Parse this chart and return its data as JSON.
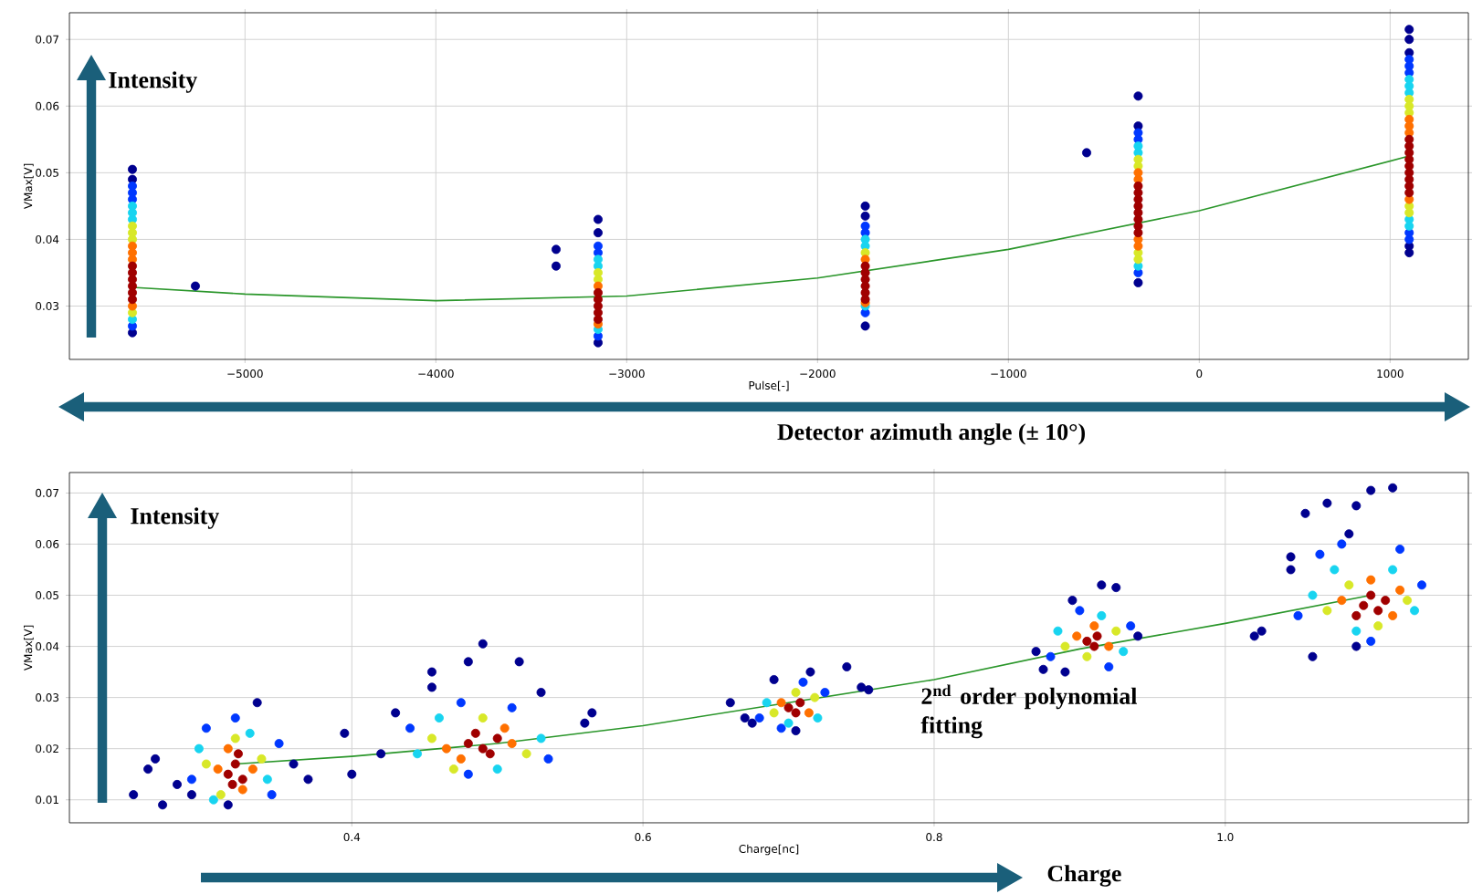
{
  "chart_data": [
    {
      "type": "scatter",
      "xlabel": "Pulse[-]",
      "ylabel": "VMax[V]",
      "xlim": [
        -5920,
        1410
      ],
      "ylim": [
        0.022,
        0.074
      ],
      "xticks": [
        {
          "value": -5000,
          "label": "−5000"
        },
        {
          "value": -4000,
          "label": "−4000"
        },
        {
          "value": -3000,
          "label": "−3000"
        },
        {
          "value": -2000,
          "label": "−2000"
        },
        {
          "value": -1000,
          "label": "−1000"
        },
        0,
        1000
      ],
      "yticks": [
        0.03,
        0.04,
        0.05,
        0.06,
        0.07
      ],
      "grid": true,
      "annotations": [
        "Intensity",
        "Detector azimuth angle (± 10°)"
      ],
      "series": [
        {
          "color": "#00008f",
          "x": [
            -5590,
            -5590,
            -5590,
            -3150,
            -3150,
            -3150,
            -1750,
            -1750,
            -1750,
            -320,
            -320,
            -320,
            1100,
            1100,
            1100,
            1100,
            1100,
            -5260,
            -3370,
            -3370,
            -590
          ],
          "values": [
            0.026,
            0.0505,
            0.049,
            0.0245,
            0.041,
            0.043,
            0.027,
            0.0435,
            0.045,
            0.0335,
            0.0615,
            0.057,
            0.038,
            0.039,
            0.068,
            0.07,
            0.0715,
            0.033,
            0.0385,
            0.036,
            0.053
          ]
        },
        {
          "color": "#0038ff",
          "x": [
            -5590,
            -5590,
            -5590,
            -5590,
            -3150,
            -3150,
            -3150,
            -1750,
            -1750,
            -1750,
            -320,
            -320,
            -320,
            1100,
            1100,
            1100,
            1100,
            1100
          ],
          "values": [
            0.027,
            0.046,
            0.048,
            0.047,
            0.0255,
            0.038,
            0.039,
            0.029,
            0.041,
            0.042,
            0.035,
            0.055,
            0.056,
            0.04,
            0.041,
            0.065,
            0.066,
            0.067
          ]
        },
        {
          "color": "#18d4f0",
          "x": [
            -5590,
            -5590,
            -5590,
            -5590,
            -3150,
            -3150,
            -3150,
            -1750,
            -1750,
            -1750,
            -320,
            -320,
            -320,
            1100,
            1100,
            1100,
            1100,
            1100
          ],
          "values": [
            0.028,
            0.043,
            0.044,
            0.045,
            0.0265,
            0.036,
            0.037,
            0.03,
            0.039,
            0.04,
            0.036,
            0.053,
            0.054,
            0.042,
            0.043,
            0.062,
            0.063,
            0.064
          ]
        },
        {
          "color": "#d8e828",
          "x": [
            -5590,
            -5590,
            -5590,
            -5590,
            -3150,
            -3150,
            -1750,
            -320,
            -320,
            -320,
            -320,
            1100,
            1100,
            1100,
            1100,
            1100
          ],
          "values": [
            0.029,
            0.04,
            0.041,
            0.042,
            0.034,
            0.035,
            0.038,
            0.037,
            0.038,
            0.051,
            0.052,
            0.044,
            0.045,
            0.059,
            0.06,
            0.061
          ]
        },
        {
          "color": "#ff7000",
          "x": [
            -5590,
            -5590,
            -5590,
            -5590,
            -3150,
            -3150,
            -1750,
            -1750,
            -320,
            -320,
            -320,
            -320,
            1100,
            1100,
            1100,
            1100
          ],
          "values": [
            0.03,
            0.037,
            0.038,
            0.039,
            0.0273,
            0.033,
            0.037,
            0.0305,
            0.039,
            0.04,
            0.049,
            0.05,
            0.046,
            0.056,
            0.057,
            0.058
          ]
        },
        {
          "color": "#a00000",
          "x": [
            -5590,
            -5590,
            -5590,
            -5590,
            -5590,
            -5590,
            -3150,
            -3150,
            -3150,
            -3150,
            -3150,
            -1750,
            -1750,
            -1750,
            -1750,
            -1750,
            -1750,
            -320,
            -320,
            -320,
            -320,
            -320,
            -320,
            -320,
            -320,
            1100,
            1100,
            1100,
            1100,
            1100,
            1100,
            1100,
            1100,
            1100
          ],
          "values": [
            0.031,
            0.032,
            0.033,
            0.034,
            0.035,
            0.036,
            0.028,
            0.029,
            0.03,
            0.031,
            0.032,
            0.031,
            0.032,
            0.033,
            0.034,
            0.035,
            0.036,
            0.041,
            0.042,
            0.043,
            0.044,
            0.045,
            0.046,
            0.047,
            0.048,
            0.047,
            0.048,
            0.049,
            0.05,
            0.051,
            0.052,
            0.053,
            0.054,
            0.055
          ]
        },
        {
          "type": "line",
          "color": "#2a962a",
          "x": [
            -5590,
            -5000,
            -4000,
            -3000,
            -2000,
            -1000,
            0,
            1100
          ],
          "values": [
            0.0328,
            0.0318,
            0.0308,
            0.0315,
            0.0342,
            0.0385,
            0.0443,
            0.0525
          ]
        }
      ]
    },
    {
      "type": "scatter",
      "xlabel": "Charge[nc]",
      "ylabel": "VMax[V]",
      "xlim": [
        0.206,
        1.167
      ],
      "ylim": [
        0.0055,
        0.074
      ],
      "xticks": [
        0.4,
        0.6,
        0.8,
        {
          "value": 1.0,
          "label": "1.0"
        }
      ],
      "yticks": [
        0.01,
        0.02,
        0.03,
        0.04,
        0.05,
        0.06,
        0.07
      ],
      "grid": true,
      "annotations": [
        "Intensity",
        "Charge",
        "2$^{nd}$ order polynomial fitting"
      ],
      "series": [
        {
          "color": "#00008f",
          "x": [
            0.25,
            0.26,
            0.27,
            0.28,
            0.29,
            0.335,
            0.36,
            0.37,
            0.315,
            0.265,
            0.395,
            0.4,
            0.42,
            0.43,
            0.455,
            0.48,
            0.49,
            0.515,
            0.53,
            0.56,
            0.565,
            0.455,
            0.66,
            0.67,
            0.675,
            0.69,
            0.715,
            0.74,
            0.75,
            0.755,
            0.705,
            0.875,
            0.87,
            0.895,
            0.915,
            0.925,
            0.94,
            0.89,
            1.02,
            1.025,
            1.045,
            1.045,
            1.055,
            1.07,
            1.09,
            1.1,
            1.115,
            1.085,
            1.06,
            1.09
          ],
          "values": [
            0.011,
            0.016,
            0.009,
            0.013,
            0.011,
            0.029,
            0.017,
            0.014,
            0.009,
            0.018,
            0.023,
            0.015,
            0.019,
            0.027,
            0.035,
            0.037,
            0.0405,
            0.037,
            0.031,
            0.025,
            0.027,
            0.032,
            0.029,
            0.026,
            0.025,
            0.0335,
            0.035,
            0.036,
            0.032,
            0.0315,
            0.0235,
            0.0355,
            0.039,
            0.049,
            0.052,
            0.0515,
            0.042,
            0.035,
            0.042,
            0.043,
            0.0575,
            0.055,
            0.066,
            0.068,
            0.0675,
            0.0705,
            0.071,
            0.062,
            0.038,
            0.04
          ]
        },
        {
          "color": "#0038ff",
          "x": [
            0.29,
            0.35,
            0.32,
            0.345,
            0.3,
            0.44,
            0.535,
            0.475,
            0.51,
            0.48,
            0.68,
            0.725,
            0.71,
            0.695,
            0.88,
            0.935,
            0.9,
            0.92,
            1.05,
            1.135,
            1.065,
            1.1,
            1.12,
            1.08
          ],
          "values": [
            0.014,
            0.021,
            0.026,
            0.011,
            0.024,
            0.024,
            0.018,
            0.029,
            0.028,
            0.015,
            0.026,
            0.031,
            0.033,
            0.024,
            0.038,
            0.044,
            0.047,
            0.036,
            0.046,
            0.052,
            0.058,
            0.041,
            0.059,
            0.06
          ]
        },
        {
          "color": "#18d4f0",
          "x": [
            0.295,
            0.342,
            0.33,
            0.305,
            0.445,
            0.53,
            0.46,
            0.5,
            0.685,
            0.72,
            0.7,
            0.885,
            0.93,
            0.915,
            1.06,
            1.13,
            1.075,
            1.09,
            1.115
          ],
          "values": [
            0.02,
            0.014,
            0.023,
            0.01,
            0.019,
            0.022,
            0.026,
            0.016,
            0.029,
            0.026,
            0.025,
            0.043,
            0.039,
            0.046,
            0.05,
            0.047,
            0.055,
            0.043,
            0.055
          ]
        },
        {
          "color": "#d8e828",
          "x": [
            0.3,
            0.338,
            0.32,
            0.31,
            0.455,
            0.52,
            0.49,
            0.47,
            0.69,
            0.718,
            0.705,
            0.89,
            0.925,
            0.905,
            1.07,
            1.125,
            1.085,
            1.105
          ],
          "values": [
            0.017,
            0.018,
            0.022,
            0.011,
            0.022,
            0.019,
            0.026,
            0.016,
            0.027,
            0.03,
            0.031,
            0.04,
            0.043,
            0.038,
            0.047,
            0.049,
            0.052,
            0.044
          ]
        },
        {
          "color": "#ff7000",
          "x": [
            0.308,
            0.332,
            0.315,
            0.325,
            0.465,
            0.51,
            0.475,
            0.505,
            0.695,
            0.714,
            0.898,
            0.92,
            0.91,
            1.08,
            1.115,
            1.1,
            1.12
          ],
          "values": [
            0.016,
            0.016,
            0.02,
            0.012,
            0.02,
            0.021,
            0.018,
            0.024,
            0.029,
            0.027,
            0.042,
            0.04,
            0.044,
            0.049,
            0.046,
            0.053,
            0.051
          ]
        },
        {
          "color": "#a00000",
          "x": [
            0.315,
            0.32,
            0.325,
            0.318,
            0.322,
            0.48,
            0.49,
            0.5,
            0.495,
            0.485,
            0.7,
            0.708,
            0.705,
            0.905,
            0.912,
            0.91,
            1.095,
            1.105,
            1.1,
            1.11,
            1.09
          ],
          "values": [
            0.015,
            0.017,
            0.014,
            0.013,
            0.019,
            0.021,
            0.02,
            0.022,
            0.019,
            0.023,
            0.028,
            0.029,
            0.027,
            0.041,
            0.042,
            0.04,
            0.048,
            0.047,
            0.05,
            0.049,
            0.046
          ]
        },
        {
          "type": "line",
          "color": "#2a962a",
          "x": [
            0.32,
            0.4,
            0.5,
            0.6,
            0.7,
            0.8,
            0.9,
            1.0,
            1.1
          ],
          "values": [
            0.017,
            0.0185,
            0.021,
            0.0245,
            0.029,
            0.0335,
            0.0395,
            0.0445,
            0.05
          ]
        }
      ]
    }
  ]
}
